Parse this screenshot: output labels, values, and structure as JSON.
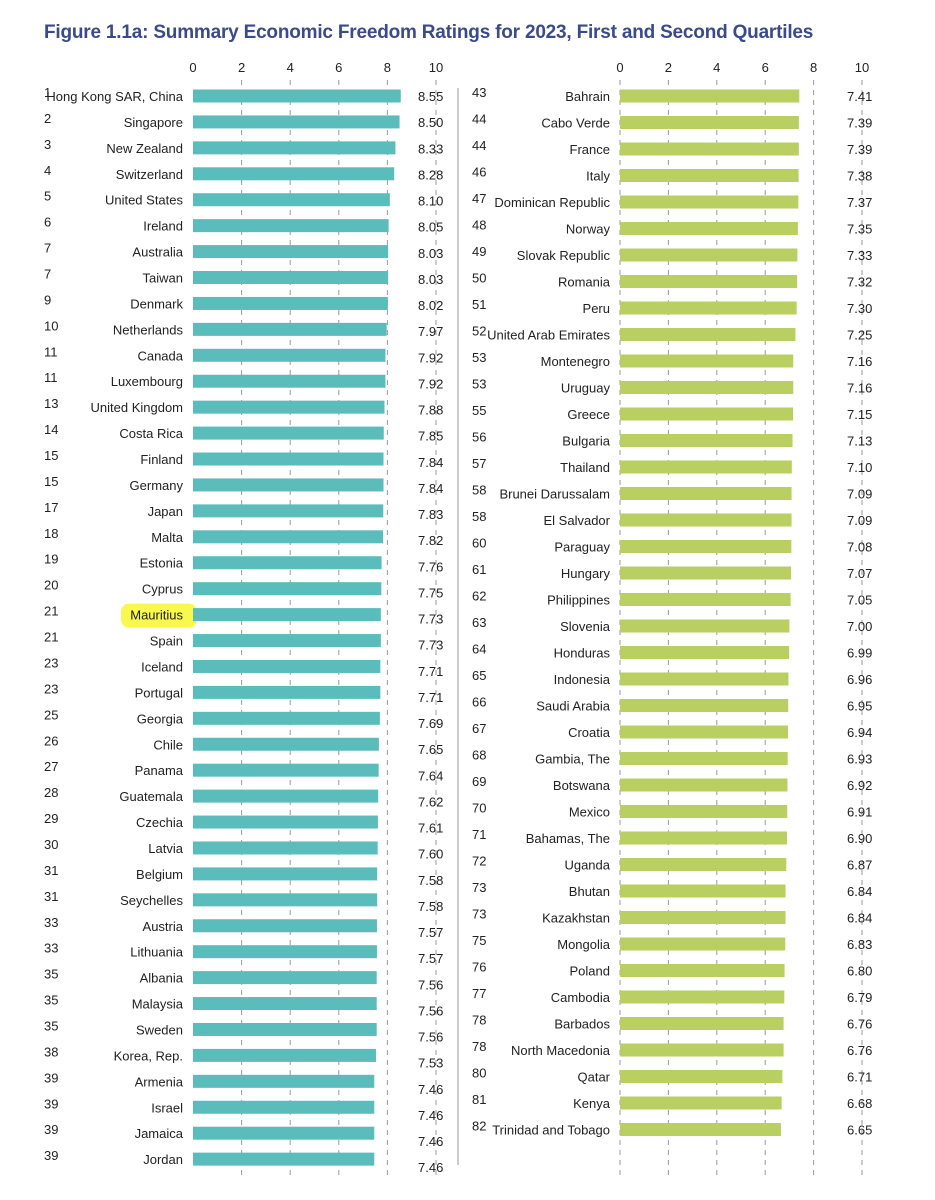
{
  "title": "Figure 1.1a: Summary Economic Freedom Ratings for 2023, First and Second Quartiles",
  "colors": {
    "title": "#3a4a8a",
    "left_bar": "#5bbcbc",
    "right_bar": "#b9cf62",
    "highlight": "#f7f73c"
  },
  "highlighted_country": "Mauritius",
  "chart_data": [
    {
      "type": "bar",
      "orientation": "horizontal",
      "panel": "left",
      "xlim": [
        0,
        10
      ],
      "xticks": [
        "0",
        "2",
        "4",
        "6",
        "8",
        "10"
      ],
      "gridlines": "dashed vertical at 2, 4, 6, 8, 10",
      "rows": [
        {
          "rank": "1",
          "country": "Hong Kong SAR, China",
          "value": "8.55"
        },
        {
          "rank": "2",
          "country": "Singapore",
          "value": "8.50"
        },
        {
          "rank": "3",
          "country": "New Zealand",
          "value": "8.33"
        },
        {
          "rank": "4",
          "country": "Switzerland",
          "value": "8.28"
        },
        {
          "rank": "5",
          "country": "United States",
          "value": "8.10"
        },
        {
          "rank": "6",
          "country": "Ireland",
          "value": "8.05"
        },
        {
          "rank": "7",
          "country": "Australia",
          "value": "8.03"
        },
        {
          "rank": "7",
          "country": "Taiwan",
          "value": "8.03"
        },
        {
          "rank": "9",
          "country": "Denmark",
          "value": "8.02"
        },
        {
          "rank": "10",
          "country": "Netherlands",
          "value": "7.97"
        },
        {
          "rank": "11",
          "country": "Canada",
          "value": "7.92"
        },
        {
          "rank": "11",
          "country": "Luxembourg",
          "value": "7.92"
        },
        {
          "rank": "13",
          "country": "United Kingdom",
          "value": "7.88"
        },
        {
          "rank": "14",
          "country": "Costa Rica",
          "value": "7.85"
        },
        {
          "rank": "15",
          "country": "Finland",
          "value": "7.84"
        },
        {
          "rank": "15",
          "country": "Germany",
          "value": "7.84"
        },
        {
          "rank": "17",
          "country": "Japan",
          "value": "7.83"
        },
        {
          "rank": "18",
          "country": "Malta",
          "value": "7.82"
        },
        {
          "rank": "19",
          "country": "Estonia",
          "value": "7.76"
        },
        {
          "rank": "20",
          "country": "Cyprus",
          "value": "7.75"
        },
        {
          "rank": "21",
          "country": "Mauritius",
          "value": "7.73"
        },
        {
          "rank": "21",
          "country": "Spain",
          "value": "7.73"
        },
        {
          "rank": "23",
          "country": "Iceland",
          "value": "7.71"
        },
        {
          "rank": "23",
          "country": "Portugal",
          "value": "7.71"
        },
        {
          "rank": "25",
          "country": "Georgia",
          "value": "7.69"
        },
        {
          "rank": "26",
          "country": "Chile",
          "value": "7.65"
        },
        {
          "rank": "27",
          "country": "Panama",
          "value": "7.64"
        },
        {
          "rank": "28",
          "country": "Guatemala",
          "value": "7.62"
        },
        {
          "rank": "29",
          "country": "Czechia",
          "value": "7.61"
        },
        {
          "rank": "30",
          "country": "Latvia",
          "value": "7.60"
        },
        {
          "rank": "31",
          "country": "Belgium",
          "value": "7.58"
        },
        {
          "rank": "31",
          "country": "Seychelles",
          "value": "7.58"
        },
        {
          "rank": "33",
          "country": "Austria",
          "value": "7.57"
        },
        {
          "rank": "33",
          "country": "Lithuania",
          "value": "7.57"
        },
        {
          "rank": "35",
          "country": "Albania",
          "value": "7.56"
        },
        {
          "rank": "35",
          "country": "Malaysia",
          "value": "7.56"
        },
        {
          "rank": "35",
          "country": "Sweden",
          "value": "7.56"
        },
        {
          "rank": "38",
          "country": "Korea, Rep.",
          "value": "7.53"
        },
        {
          "rank": "39",
          "country": "Armenia",
          "value": "7.46"
        },
        {
          "rank": "39",
          "country": "Israel",
          "value": "7.46"
        },
        {
          "rank": "39",
          "country": "Jamaica",
          "value": "7.46"
        },
        {
          "rank": "39",
          "country": "Jordan",
          "value": "7.46"
        }
      ]
    },
    {
      "type": "bar",
      "orientation": "horizontal",
      "panel": "right",
      "xlim": [
        0,
        10
      ],
      "xticks": [
        "0",
        "2",
        "4",
        "6",
        "8",
        "10"
      ],
      "gridlines": "dashed vertical at 0, 2, 4, 6, 8, 10",
      "rows": [
        {
          "rank": "43",
          "country": "Bahrain",
          "value": "7.41"
        },
        {
          "rank": "44",
          "country": "Cabo Verde",
          "value": "7.39"
        },
        {
          "rank": "44",
          "country": "France",
          "value": "7.39"
        },
        {
          "rank": "46",
          "country": "Italy",
          "value": "7.38"
        },
        {
          "rank": "47",
          "country": "Dominican Republic",
          "value": "7.37"
        },
        {
          "rank": "48",
          "country": "Norway",
          "value": "7.35"
        },
        {
          "rank": "49",
          "country": "Slovak Republic",
          "value": "7.33"
        },
        {
          "rank": "50",
          "country": "Romania",
          "value": "7.32"
        },
        {
          "rank": "51",
          "country": "Peru",
          "value": "7.30"
        },
        {
          "rank": "52",
          "country": "United Arab Emirates",
          "value": "7.25"
        },
        {
          "rank": "53",
          "country": "Montenegro",
          "value": "7.16"
        },
        {
          "rank": "53",
          "country": "Uruguay",
          "value": "7.16"
        },
        {
          "rank": "55",
          "country": "Greece",
          "value": "7.15"
        },
        {
          "rank": "56",
          "country": "Bulgaria",
          "value": "7.13"
        },
        {
          "rank": "57",
          "country": "Thailand",
          "value": "7.10"
        },
        {
          "rank": "58",
          "country": "Brunei Darussalam",
          "value": "7.09"
        },
        {
          "rank": "58",
          "country": "El Salvador",
          "value": "7.09"
        },
        {
          "rank": "60",
          "country": "Paraguay",
          "value": "7.08"
        },
        {
          "rank": "61",
          "country": "Hungary",
          "value": "7.07"
        },
        {
          "rank": "62",
          "country": "Philippines",
          "value": "7.05"
        },
        {
          "rank": "63",
          "country": "Slovenia",
          "value": "7.00"
        },
        {
          "rank": "64",
          "country": "Honduras",
          "value": "6.99"
        },
        {
          "rank": "65",
          "country": "Indonesia",
          "value": "6.96"
        },
        {
          "rank": "66",
          "country": "Saudi Arabia",
          "value": "6.95"
        },
        {
          "rank": "67",
          "country": "Croatia",
          "value": "6.94"
        },
        {
          "rank": "68",
          "country": "Gambia, The",
          "value": "6.93"
        },
        {
          "rank": "69",
          "country": "Botswana",
          "value": "6.92"
        },
        {
          "rank": "70",
          "country": "Mexico",
          "value": "6.91"
        },
        {
          "rank": "71",
          "country": "Bahamas, The",
          "value": "6.90"
        },
        {
          "rank": "72",
          "country": "Uganda",
          "value": "6.87"
        },
        {
          "rank": "73",
          "country": "Bhutan",
          "value": "6.84"
        },
        {
          "rank": "73",
          "country": "Kazakhstan",
          "value": "6.84"
        },
        {
          "rank": "75",
          "country": "Mongolia",
          "value": "6.83"
        },
        {
          "rank": "76",
          "country": "Poland",
          "value": "6.80"
        },
        {
          "rank": "77",
          "country": "Cambodia",
          "value": "6.79"
        },
        {
          "rank": "78",
          "country": "Barbados",
          "value": "6.76"
        },
        {
          "rank": "78",
          "country": "North Macedonia",
          "value": "6.76"
        },
        {
          "rank": "80",
          "country": "Qatar",
          "value": "6.71"
        },
        {
          "rank": "81",
          "country": "Kenya",
          "value": "6.68"
        },
        {
          "rank": "82",
          "country": "Trinidad and Tobago",
          "value": "6.65"
        }
      ]
    }
  ]
}
